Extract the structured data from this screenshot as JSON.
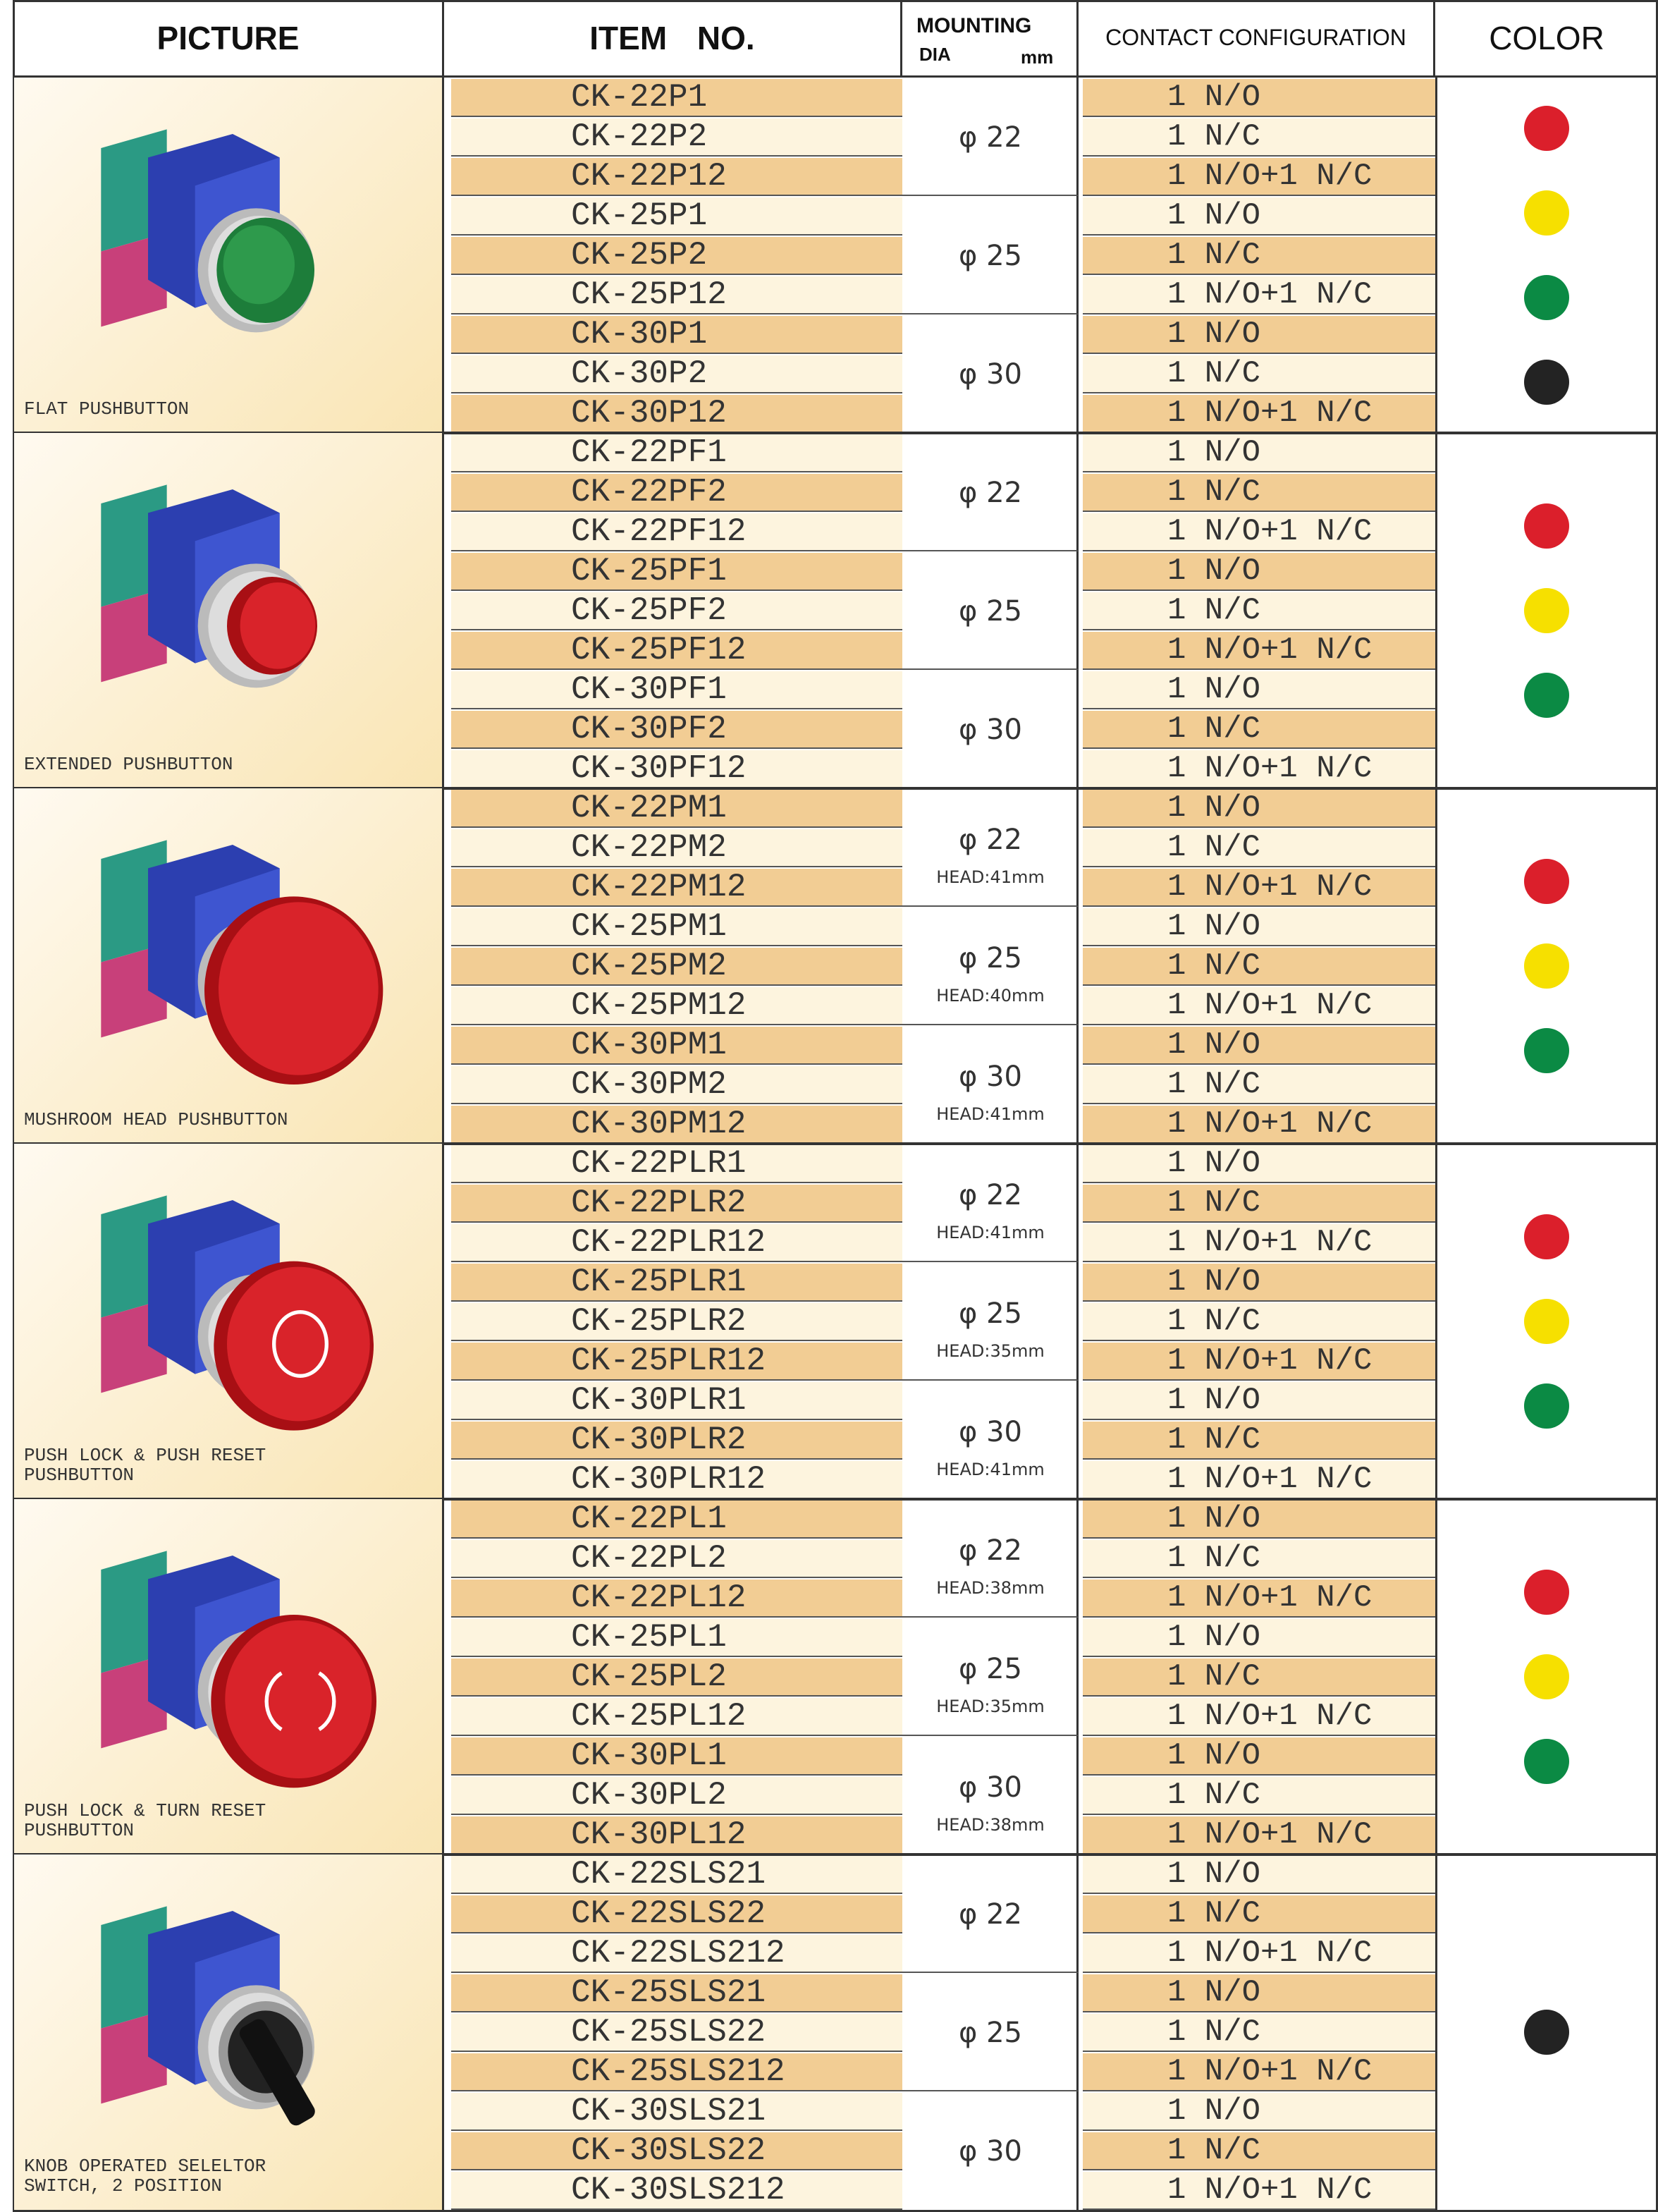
{
  "header": {
    "picture": "PICTURE",
    "item_no": "ITEM NO.",
    "mounting": [
      "MOUNTING",
      "DIA",
      "mm"
    ],
    "contact": "CONTACT CONFIGURATION",
    "color": "COLOR"
  },
  "groups": [
    {
      "caption": [
        "FLAT PUSHBUTTON"
      ],
      "colors": [
        "#db1f2b",
        "#f6e000",
        "#0b8a44",
        "#232323"
      ],
      "sizes": [
        {
          "dia": "φ 22",
          "items": [
            [
              "CK-22P1",
              "1 N/O"
            ],
            [
              "CK-22P2",
              "1 N/C"
            ],
            [
              "CK-22P12",
              "1 N/O+1 N/C"
            ]
          ]
        },
        {
          "dia": "φ 25",
          "items": [
            [
              "CK-25P1",
              "1 N/O"
            ],
            [
              "CK-25P2",
              "1 N/C"
            ],
            [
              "CK-25P12",
              "1 N/O+1 N/C"
            ]
          ]
        },
        {
          "dia": "φ 30",
          "items": [
            [
              "CK-30P1",
              "1 N/O"
            ],
            [
              "CK-30P2",
              "1 N/C"
            ],
            [
              "CK-30P12",
              "1 N/O+1 N/C"
            ]
          ]
        }
      ]
    },
    {
      "caption": [
        "EXTENDED PUSHBUTTON"
      ],
      "colors": [
        "#db1f2b",
        "#f6e000",
        "#0b8a44"
      ],
      "sizes": [
        {
          "dia": "φ 22",
          "items": [
            [
              "CK-22PF1",
              "1 N/O"
            ],
            [
              "CK-22PF2",
              "1 N/C"
            ],
            [
              "CK-22PF12",
              "1 N/O+1 N/C"
            ]
          ]
        },
        {
          "dia": "φ 25",
          "items": [
            [
              "CK-25PF1",
              "1 N/O"
            ],
            [
              "CK-25PF2",
              "1 N/C"
            ],
            [
              "CK-25PF12",
              "1 N/O+1 N/C"
            ]
          ]
        },
        {
          "dia": "φ 30",
          "items": [
            [
              "CK-30PF1",
              "1 N/O"
            ],
            [
              "CK-30PF2",
              "1 N/C"
            ],
            [
              "CK-30PF12",
              "1 N/O+1 N/C"
            ]
          ]
        }
      ]
    },
    {
      "caption": [
        "MUSHROOM HEAD PUSHBUTTON"
      ],
      "colors": [
        "#db1f2b",
        "#f6e000",
        "#0b8a44"
      ],
      "sizes": [
        {
          "dia": "φ 22",
          "head": "HEAD:41mm",
          "items": [
            [
              "CK-22PM1",
              "1 N/O"
            ],
            [
              "CK-22PM2",
              "1 N/C"
            ],
            [
              "CK-22PM12",
              "1 N/O+1 N/C"
            ]
          ]
        },
        {
          "dia": "φ 25",
          "head": "HEAD:40mm",
          "items": [
            [
              "CK-25PM1",
              "1 N/O"
            ],
            [
              "CK-25PM2",
              "1 N/C"
            ],
            [
              "CK-25PM12",
              "1 N/O+1 N/C"
            ]
          ]
        },
        {
          "dia": "φ 30",
          "head": "HEAD:41mm",
          "items": [
            [
              "CK-30PM1",
              "1 N/O"
            ],
            [
              "CK-30PM2",
              "1 N/C"
            ],
            [
              "CK-30PM12",
              "1 N/O+1 N/C"
            ]
          ]
        }
      ]
    },
    {
      "caption": [
        "PUSH LOCK & PUSH RESET",
        "PUSHBUTTON"
      ],
      "colors": [
        "#db1f2b",
        "#f6e000",
        "#0b8a44"
      ],
      "sizes": [
        {
          "dia": "φ 22",
          "head": "HEAD:41mm",
          "items": [
            [
              "CK-22PLR1",
              "1 N/O"
            ],
            [
              "CK-22PLR2",
              "1 N/C"
            ],
            [
              "CK-22PLR12",
              "1 N/O+1 N/C"
            ]
          ]
        },
        {
          "dia": "φ 25",
          "head": "HEAD:35mm",
          "items": [
            [
              "CK-25PLR1",
              "1 N/O"
            ],
            [
              "CK-25PLR2",
              "1 N/C"
            ],
            [
              "CK-25PLR12",
              "1 N/O+1 N/C"
            ]
          ]
        },
        {
          "dia": "φ 30",
          "head": "HEAD:41mm",
          "items": [
            [
              "CK-30PLR1",
              "1 N/O"
            ],
            [
              "CK-30PLR2",
              "1 N/C"
            ],
            [
              "CK-30PLR12",
              "1 N/O+1 N/C"
            ]
          ]
        }
      ]
    },
    {
      "caption": [
        "PUSH LOCK & TURN RESET",
        "PUSHBUTTON"
      ],
      "colors": [
        "#db1f2b",
        "#f6e000",
        "#0b8a44"
      ],
      "sizes": [
        {
          "dia": "φ 22",
          "head": "HEAD:38mm",
          "items": [
            [
              "CK-22PL1",
              "1 N/O"
            ],
            [
              "CK-22PL2",
              "1 N/C"
            ],
            [
              "CK-22PL12",
              "1 N/O+1 N/C"
            ]
          ]
        },
        {
          "dia": "φ 25",
          "head": "HEAD:35mm",
          "items": [
            [
              "CK-25PL1",
              "1 N/O"
            ],
            [
              "CK-25PL2",
              "1 N/C"
            ],
            [
              "CK-25PL12",
              "1 N/O+1 N/C"
            ]
          ]
        },
        {
          "dia": "φ 30",
          "head": "HEAD:38mm",
          "items": [
            [
              "CK-30PL1",
              "1 N/O"
            ],
            [
              "CK-30PL2",
              "1 N/C"
            ],
            [
              "CK-30PL12",
              "1 N/O+1 N/C"
            ]
          ]
        }
      ]
    },
    {
      "caption": [
        "KNOB OPERATED SELELTOR",
        "SWITCH, 2 POSITION"
      ],
      "colors": [
        "#232323"
      ],
      "sizes": [
        {
          "dia": "φ 22",
          "items": [
            [
              "CK-22SLS21",
              "1 N/O"
            ],
            [
              "CK-22SLS22",
              "1 N/C"
            ],
            [
              "CK-22SLS212",
              "1 N/O+1 N/C"
            ]
          ]
        },
        {
          "dia": "φ 25",
          "items": [
            [
              "CK-25SLS21",
              "1 N/O"
            ],
            [
              "CK-25SLS22",
              "1 N/C"
            ],
            [
              "CK-25SLS212",
              "1 N/O+1 N/C"
            ]
          ]
        },
        {
          "dia": "φ 30",
          "items": [
            [
              "CK-30SLS21",
              "1 N/O"
            ],
            [
              "CK-30SLS22",
              "1 N/C"
            ],
            [
              "CK-30SLS212",
              "1 N/O+1 N/C"
            ]
          ]
        }
      ]
    }
  ]
}
